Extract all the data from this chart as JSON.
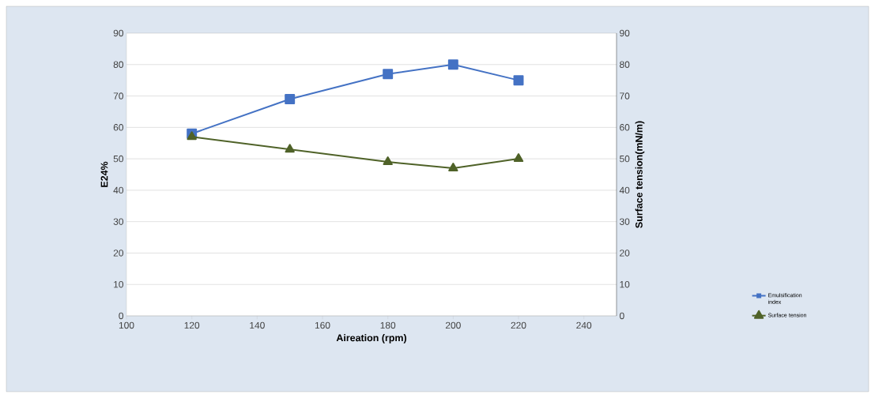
{
  "chart_data": {
    "type": "line",
    "xlabel": "Aireation (rpm)",
    "ylabel": "E24%",
    "y2label": "Surface tension(mN/m)",
    "x": [
      120,
      150,
      180,
      200,
      220
    ],
    "series": [
      {
        "name": "Emulsification index",
        "color": "#4472c4",
        "marker": "square",
        "values": [
          58,
          69,
          77,
          80,
          75
        ]
      },
      {
        "name": "Surface tension",
        "color": "#4f6228",
        "marker": "triangle",
        "axis": "y2",
        "values": [
          57,
          53,
          49,
          47,
          50
        ]
      }
    ],
    "xlim": [
      100,
      250
    ],
    "xticks": [
      100,
      120,
      140,
      160,
      180,
      200,
      220,
      240
    ],
    "ylim": [
      0,
      90
    ],
    "yticks": [
      0,
      10,
      20,
      30,
      40,
      50,
      60,
      70,
      80,
      90
    ],
    "y2lim": [
      0,
      90
    ],
    "y2ticks": [
      0,
      10,
      20,
      30,
      40,
      50,
      60,
      70,
      80,
      90
    ],
    "grid": "y",
    "legend": "right"
  }
}
